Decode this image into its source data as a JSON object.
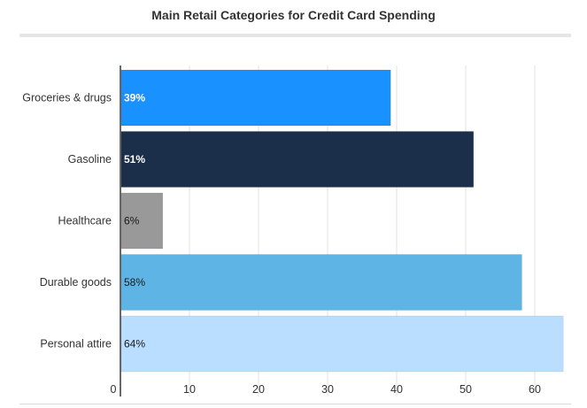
{
  "chart_data": {
    "type": "bar",
    "orientation": "horizontal",
    "title": "Main Retail Categories for Credit Card Spending",
    "categories": [
      "Groceries & drugs",
      "Gasoline",
      "Healthcare",
      "Durable goods",
      "Personal attire"
    ],
    "values": [
      39,
      51,
      6,
      58,
      64
    ],
    "data_labels": [
      "39%",
      "51%",
      "6%",
      "58%",
      "64%"
    ],
    "bar_colors": [
      "#1991ff",
      "#1b2f4b",
      "#999999",
      "#5fb4e6",
      "#badeff"
    ],
    "label_colors": [
      "#ffffff",
      "#ffffff",
      "#1a1a1a",
      "#1a1a1a",
      "#1a1a1a"
    ],
    "label_bold": [
      true,
      true,
      false,
      false,
      false
    ],
    "x_ticks": [
      0,
      10,
      20,
      30,
      40,
      50,
      60
    ],
    "xlim": [
      0,
      64
    ],
    "xlabel": "",
    "ylabel": "",
    "grid": true
  }
}
